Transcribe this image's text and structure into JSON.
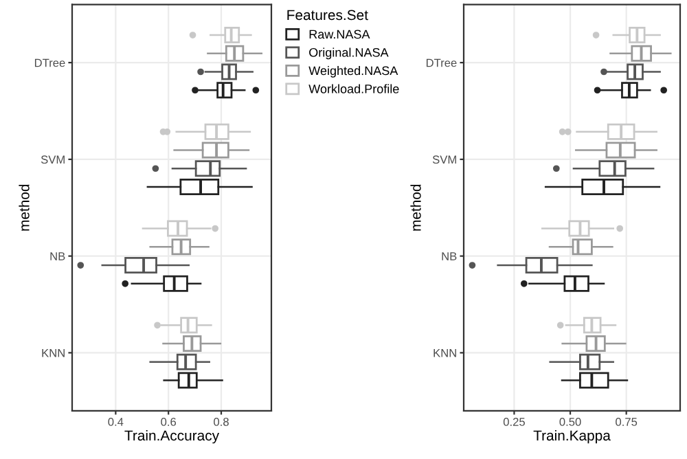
{
  "chart_data": [
    {
      "type": "box",
      "orientation": "horizontal",
      "xlabel": "Train.Accuracy",
      "ylabel": "method",
      "legend_title": "Features.Set",
      "legend": "right",
      "grid": true,
      "categories": [
        "DTree",
        "SVM",
        "NB",
        "KNN"
      ],
      "xlim": [
        0.235,
        0.99
      ],
      "xticks": [
        0.4,
        0.6,
        0.8
      ],
      "series": [
        {
          "name": "Raw.NASA",
          "color": "#222222",
          "boxes": [
            {
              "low": 0.715,
              "q1": 0.786,
              "median": 0.807,
              "q3": 0.839,
              "high": 0.889,
              "outliers": [
                0.701,
                0.931
              ]
            },
            {
              "low": 0.521,
              "q1": 0.646,
              "median": 0.722,
              "q3": 0.789,
              "high": 0.916
            },
            {
              "low": 0.461,
              "q1": 0.583,
              "median": 0.622,
              "q3": 0.671,
              "high": 0.722,
              "outliers": [
                0.436
              ]
            },
            {
              "low": 0.583,
              "q1": 0.639,
              "median": 0.677,
              "q3": 0.707,
              "high": 0.804
            }
          ]
        },
        {
          "name": "Original.NASA",
          "color": "#555555",
          "boxes": [
            {
              "low": 0.74,
              "q1": 0.804,
              "median": 0.83,
              "q3": 0.856,
              "high": 0.919,
              "outliers": [
                0.722
              ]
            },
            {
              "low": 0.615,
              "q1": 0.704,
              "median": 0.759,
              "q3": 0.794,
              "high": 0.894,
              "outliers": [
                0.551
              ]
            },
            {
              "low": 0.349,
              "q1": 0.437,
              "median": 0.506,
              "q3": 0.554,
              "high": 0.677,
              "outliers": [
                0.267
              ]
            },
            {
              "low": 0.531,
              "q1": 0.634,
              "median": 0.665,
              "q3": 0.704,
              "high": 0.755
            }
          ]
        },
        {
          "name": "Weighted.NASA",
          "color": "#999999",
          "boxes": [
            {
              "low": 0.749,
              "q1": 0.819,
              "median": 0.85,
              "q3": 0.883,
              "high": 0.953
            },
            {
              "low": 0.622,
              "q1": 0.73,
              "median": 0.782,
              "q3": 0.827,
              "high": 0.904
            },
            {
              "low": 0.531,
              "q1": 0.615,
              "median": 0.648,
              "q3": 0.682,
              "high": 0.752
            },
            {
              "low": 0.58,
              "q1": 0.658,
              "median": 0.689,
              "q3": 0.722,
              "high": 0.797
            }
          ]
        },
        {
          "name": "Workload.Profile",
          "color": "#c8c8c8",
          "boxes": [
            {
              "low": 0.759,
              "q1": 0.815,
              "median": 0.838,
              "q3": 0.867,
              "high": 0.913,
              "outliers": [
                0.692
              ]
            },
            {
              "low": 0.63,
              "q1": 0.74,
              "median": 0.782,
              "q3": 0.827,
              "high": 0.909,
              "outliers": [
                0.58,
                0.595
              ]
            },
            {
              "low": 0.503,
              "q1": 0.598,
              "median": 0.636,
              "q3": 0.67,
              "high": 0.759,
              "outliers": [
                0.777
              ]
            },
            {
              "low": 0.573,
              "q1": 0.648,
              "median": 0.674,
              "q3": 0.707,
              "high": 0.762,
              "outliers": [
                0.558
              ]
            }
          ]
        }
      ]
    },
    {
      "type": "box",
      "orientation": "horizontal",
      "xlabel": "Train.Kappa",
      "ylabel": "method",
      "grid": true,
      "categories": [
        "DTree",
        "SVM",
        "NB",
        "KNN"
      ],
      "xlim": [
        0.025,
        0.99
      ],
      "xticks": [
        0.25,
        {
          "value": 0.5,
          "label": "0.50"
        },
        0.75
      ],
      "series": [
        {
          "color": "#222222",
          "boxes": [
            {
              "low": 0.635,
              "q1": 0.731,
              "median": 0.763,
              "q3": 0.798,
              "high": 0.856,
              "outliers": [
                0.621,
                0.917
              ]
            },
            {
              "low": 0.39,
              "q1": 0.554,
              "median": 0.65,
              "q3": 0.735,
              "high": 0.898
            },
            {
              "low": 0.317,
              "q1": 0.475,
              "median": 0.521,
              "q3": 0.581,
              "high": 0.65,
              "outliers": [
                0.294
              ]
            },
            {
              "low": 0.463,
              "q1": 0.544,
              "median": 0.596,
              "q3": 0.669,
              "high": 0.754
            }
          ]
        },
        {
          "color": "#555555",
          "boxes": [
            {
              "low": 0.665,
              "q1": 0.756,
              "median": 0.788,
              "q3": 0.823,
              "high": 0.9,
              "outliers": [
                0.65
              ]
            },
            {
              "low": 0.515,
              "q1": 0.631,
              "median": 0.698,
              "q3": 0.746,
              "high": 0.871,
              "outliers": [
                0.438
              ]
            },
            {
              "low": 0.177,
              "q1": 0.304,
              "median": 0.371,
              "q3": 0.442,
              "high": 0.596,
              "outliers": [
                0.063
              ]
            },
            {
              "low": 0.41,
              "q1": 0.544,
              "median": 0.579,
              "q3": 0.631,
              "high": 0.692
            }
          ]
        },
        {
          "color": "#999999",
          "boxes": [
            {
              "low": 0.679,
              "q1": 0.775,
              "median": 0.817,
              "q3": 0.86,
              "high": 0.948
            },
            {
              "low": 0.525,
              "q1": 0.662,
              "median": 0.723,
              "q3": 0.788,
              "high": 0.885
            },
            {
              "low": 0.408,
              "q1": 0.512,
              "median": 0.535,
              "q3": 0.596,
              "high": 0.688
            },
            {
              "low": 0.465,
              "q1": 0.573,
              "median": 0.615,
              "q3": 0.654,
              "high": 0.746
            }
          ]
        },
        {
          "color": "#c8c8c8",
          "boxes": [
            {
              "low": 0.692,
              "q1": 0.765,
              "median": 0.798,
              "q3": 0.831,
              "high": 0.9,
              "outliers": [
                0.615
              ]
            },
            {
              "low": 0.529,
              "q1": 0.669,
              "median": 0.727,
              "q3": 0.785,
              "high": 0.885,
              "outliers": [
                0.465,
                0.49
              ]
            },
            {
              "low": 0.375,
              "q1": 0.496,
              "median": 0.544,
              "q3": 0.583,
              "high": 0.692,
              "outliers": [
                0.721
              ]
            },
            {
              "low": 0.481,
              "q1": 0.562,
              "median": 0.596,
              "q3": 0.635,
              "high": 0.702,
              "outliers": [
                0.456
              ]
            }
          ]
        }
      ]
    }
  ]
}
